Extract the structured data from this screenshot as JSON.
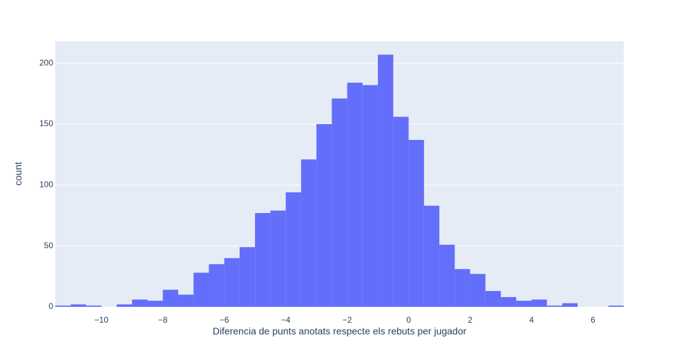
{
  "chart_data": {
    "type": "bar",
    "subtype": "histogram",
    "xlabel": "Diferencia de punts anotats respecte els rebuts per jugador",
    "ylabel": "count",
    "xlim": [
      -11.5,
      7.0
    ],
    "ylim": [
      0,
      217.9
    ],
    "bin_width": 0.5,
    "x_ticks": [
      -10,
      -8,
      -6,
      -4,
      -2,
      0,
      2,
      4,
      6
    ],
    "x_tick_labels": [
      "−10",
      "−8",
      "−6",
      "−4",
      "−2",
      "0",
      "2",
      "4",
      "6"
    ],
    "y_ticks": [
      0,
      50,
      100,
      150,
      200
    ],
    "y_tick_labels": [
      "0",
      "50",
      "100",
      "150",
      "200"
    ],
    "bins": [
      {
        "x0": -11.5,
        "x1": -11.0,
        "count": 1
      },
      {
        "x0": -11.0,
        "x1": -10.5,
        "count": 2
      },
      {
        "x0": -10.5,
        "x1": -10.0,
        "count": 1
      },
      {
        "x0": -10.0,
        "x1": -9.5,
        "count": 0
      },
      {
        "x0": -9.5,
        "x1": -9.0,
        "count": 2
      },
      {
        "x0": -9.0,
        "x1": -8.5,
        "count": 6
      },
      {
        "x0": -8.5,
        "x1": -8.0,
        "count": 5
      },
      {
        "x0": -8.0,
        "x1": -7.5,
        "count": 14
      },
      {
        "x0": -7.5,
        "x1": -7.0,
        "count": 10
      },
      {
        "x0": -7.0,
        "x1": -6.5,
        "count": 28
      },
      {
        "x0": -6.5,
        "x1": -6.0,
        "count": 35
      },
      {
        "x0": -6.0,
        "x1": -5.5,
        "count": 40
      },
      {
        "x0": -5.5,
        "x1": -5.0,
        "count": 49
      },
      {
        "x0": -5.0,
        "x1": -4.5,
        "count": 77
      },
      {
        "x0": -4.5,
        "x1": -4.0,
        "count": 79
      },
      {
        "x0": -4.0,
        "x1": -3.5,
        "count": 94
      },
      {
        "x0": -3.5,
        "x1": -3.0,
        "count": 121
      },
      {
        "x0": -3.0,
        "x1": -2.5,
        "count": 150
      },
      {
        "x0": -2.5,
        "x1": -2.0,
        "count": 171
      },
      {
        "x0": -2.0,
        "x1": -1.5,
        "count": 184
      },
      {
        "x0": -1.5,
        "x1": -1.0,
        "count": 182
      },
      {
        "x0": -1.0,
        "x1": -0.5,
        "count": 207
      },
      {
        "x0": -0.5,
        "x1": 0.0,
        "count": 156
      },
      {
        "x0": 0.0,
        "x1": 0.5,
        "count": 137
      },
      {
        "x0": 0.5,
        "x1": 1.0,
        "count": 83
      },
      {
        "x0": 1.0,
        "x1": 1.5,
        "count": 51
      },
      {
        "x0": 1.5,
        "x1": 2.0,
        "count": 31
      },
      {
        "x0": 2.0,
        "x1": 2.5,
        "count": 27
      },
      {
        "x0": 2.5,
        "x1": 3.0,
        "count": 13
      },
      {
        "x0": 3.0,
        "x1": 3.5,
        "count": 8
      },
      {
        "x0": 3.5,
        "x1": 4.0,
        "count": 5
      },
      {
        "x0": 4.0,
        "x1": 4.5,
        "count": 6
      },
      {
        "x0": 4.5,
        "x1": 5.0,
        "count": 1
      },
      {
        "x0": 5.0,
        "x1": 5.5,
        "count": 3
      },
      {
        "x0": 5.5,
        "x1": 6.0,
        "count": 0
      },
      {
        "x0": 6.0,
        "x1": 6.5,
        "count": 0
      },
      {
        "x0": 6.5,
        "x1": 7.0,
        "count": 1
      }
    ],
    "grid": true,
    "colors": {
      "bar": "#636efa",
      "plot_background": "#e5ecf6",
      "grid": "#ffffff",
      "text": "#2a3f5f"
    }
  }
}
